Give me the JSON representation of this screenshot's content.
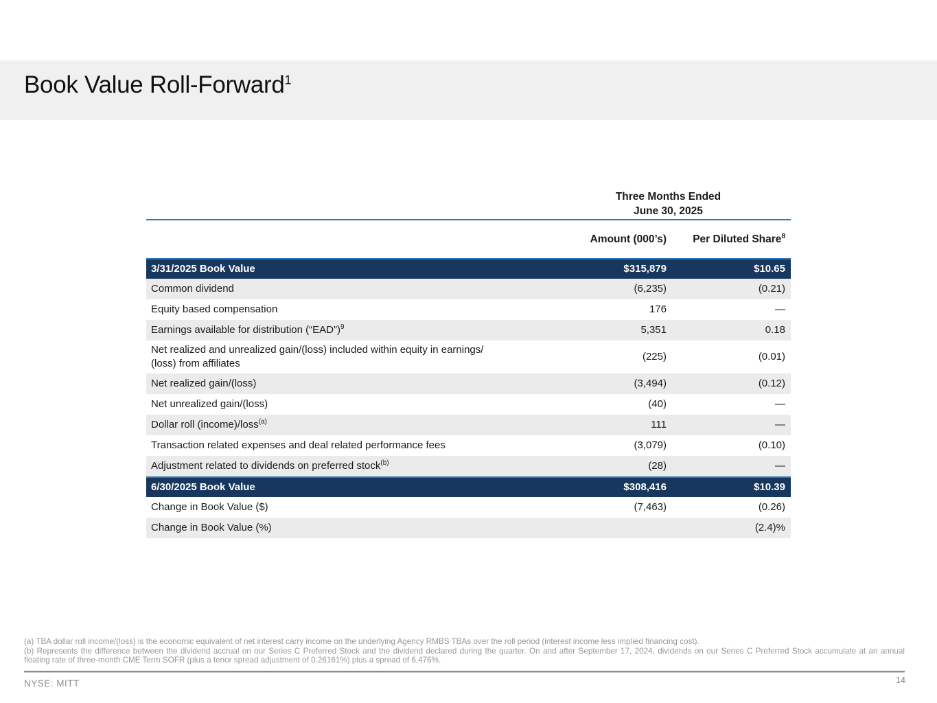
{
  "slide": {
    "title": "Book Value Roll-Forward",
    "title_sup": "1",
    "ticker": "NYSE: MITT",
    "page_number": "14"
  },
  "table": {
    "period": {
      "line1": "Three Months Ended",
      "line2": "June 30, 2025"
    },
    "columns": {
      "amount": "Amount (000’s)",
      "share": "Per Diluted Share",
      "share_sup": "8"
    },
    "rows": [
      {
        "label": "3/31/2025 Book Value",
        "sup": "",
        "amount": "$315,879",
        "share": "$10.65"
      },
      {
        "label": "Common dividend",
        "sup": "",
        "amount": "(6,235)",
        "share": "(0.21)"
      },
      {
        "label": "Equity based compensation",
        "sup": "",
        "amount": "176",
        "share": "—"
      },
      {
        "label": "Earnings available for distribution (“EAD”)",
        "sup": "9",
        "amount": "5,351",
        "share": "0.18"
      },
      {
        "label": "Net realized and unrealized gain/(loss) included within equity in earnings/\n(loss) from affiliates",
        "sup": "",
        "amount": "(225)",
        "share": "(0.01)"
      },
      {
        "label": "Net realized gain/(loss)",
        "sup": "",
        "amount": "(3,494)",
        "share": "(0.12)"
      },
      {
        "label": "Net unrealized gain/(loss)",
        "sup": "",
        "amount": "(40)",
        "share": "—"
      },
      {
        "label": "Dollar roll (income)/loss",
        "sup": "(a)",
        "amount": "111",
        "share": "—"
      },
      {
        "label": "Transaction related expenses and deal related performance fees",
        "sup": "",
        "amount": "(3,079)",
        "share": "(0.10)"
      },
      {
        "label": "Adjustment related to dividends on preferred stock",
        "sup": "(b)",
        "amount": "(28)",
        "share": "—"
      },
      {
        "label": "6/30/2025 Book Value",
        "sup": "",
        "amount": "$308,416",
        "share": "$10.39"
      },
      {
        "label": "Change in Book Value ($)",
        "sup": "",
        "amount": "(7,463)",
        "share": "(0.26)"
      },
      {
        "label": "Change in Book Value (%)",
        "sup": "",
        "amount": "",
        "share": "(2.4)%"
      }
    ]
  },
  "footnotes": {
    "a": "(a) TBA dollar roll income/(loss) is the economic equivalent of net interest carry income on the underlying Agency RMBS TBAs over the roll period (interest income less implied financing cost).",
    "b": "(b) Represents the difference between the dividend accrual on our Series C Preferred Stock and the dividend declared during the quarter. On and after September 17, 2024, dividends on our Series C Preferred Stock accumulate at an annual floating rate of three-month CME Term SOFR (plus a tenor spread adjustment of 0.26161%) plus a spread of 6.476%."
  },
  "colors": {
    "navy_row": "#17375E",
    "accent_blue": "#2E75B6",
    "row_alt_gray": "#EBEBEB",
    "title_band": "#F0F0F0",
    "footnote_gray": "#979797"
  }
}
